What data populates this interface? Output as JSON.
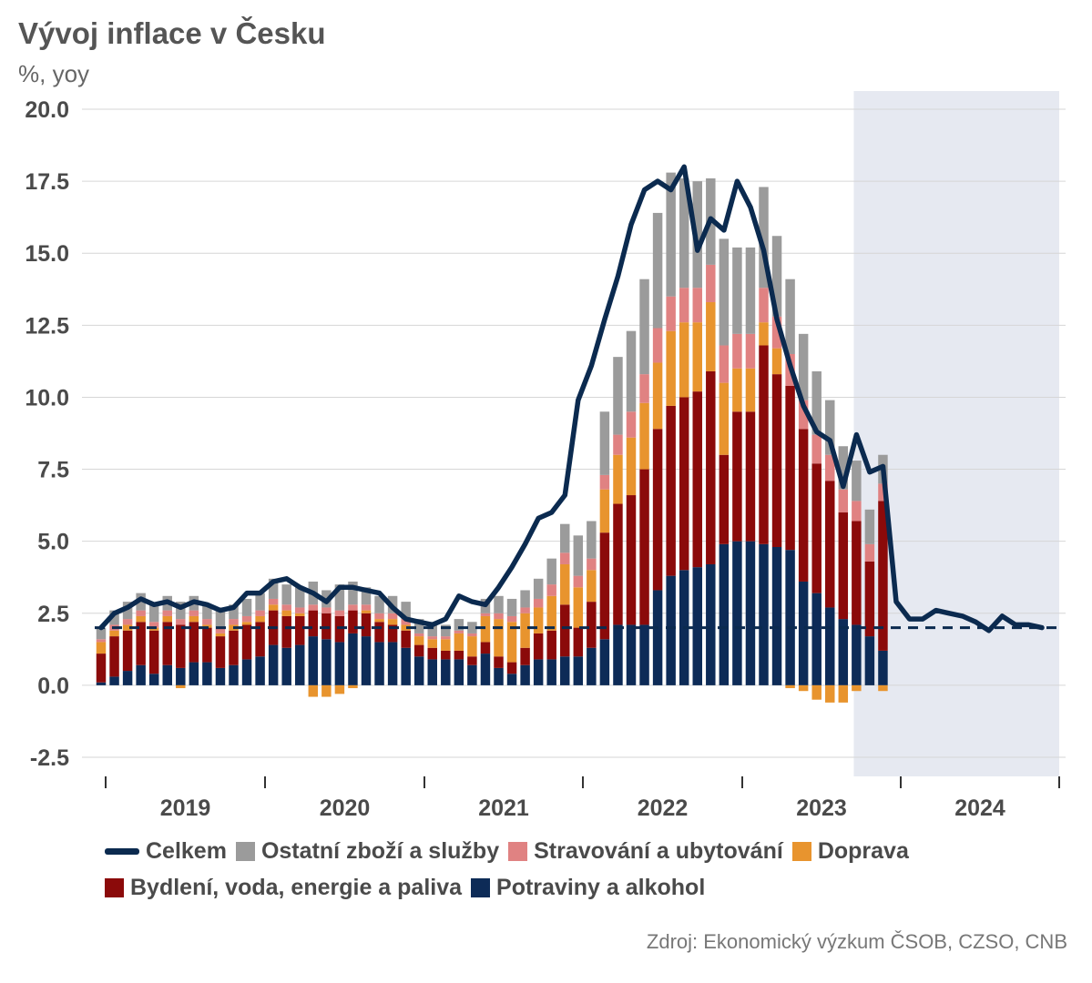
{
  "header": {
    "title": "Vývoj inflace v Česku",
    "subtitle": "%, yoy"
  },
  "source": "Zdroj: Ekonomický výzkum ČSOB, CZSO, CNB",
  "colors": {
    "total": "#0b2a4f",
    "other": "#9b9b9b",
    "restaurants": "#e08282",
    "transport": "#e8942e",
    "housing": "#8b0a0a",
    "food": "#0d2b57",
    "forecast_bg": "#e6e9f1",
    "target": "#0b2a4f"
  },
  "legend": [
    {
      "key": "total",
      "label": "Celkem",
      "shape": "line"
    },
    {
      "key": "other",
      "label": "Ostatní zboží a služby",
      "shape": "box"
    },
    {
      "key": "restaurants",
      "label": "Stravování a ubytování",
      "shape": "box"
    },
    {
      "key": "transport",
      "label": "Doprava",
      "shape": "box"
    },
    {
      "key": "housing",
      "label": "Bydlení, voda, energie a paliva",
      "shape": "box"
    },
    {
      "key": "food",
      "label": "Potraviny a alkohol",
      "shape": "box"
    }
  ],
  "chart_data": {
    "type": "bar",
    "stacked": true,
    "ylim": [
      -2.5,
      20.0
    ],
    "y_ticks": [
      "20.0",
      "17.5",
      "15.0",
      "12.5",
      "10.0",
      "7.5",
      "5.0",
      "2.5",
      "0.0",
      "-2.5"
    ],
    "y_tick_values": [
      20.0,
      17.5,
      15.0,
      12.5,
      10.0,
      7.5,
      5.0,
      2.5,
      0.0,
      -2.5
    ],
    "x_labels": [
      "2019",
      "2020",
      "2021",
      "2022",
      "2023",
      "2024"
    ],
    "x_start": "2019-01",
    "forecast_start": "2023-10",
    "target": 2.0,
    "grid": true,
    "legend_position": "bottom",
    "series": [
      {
        "key": "food",
        "name": "Potraviny a alkohol",
        "values": [
          0.1,
          0.3,
          0.5,
          0.7,
          0.4,
          0.7,
          0.6,
          0.8,
          0.8,
          0.6,
          0.7,
          0.9,
          1.0,
          1.4,
          1.3,
          1.4,
          1.7,
          1.6,
          1.5,
          1.8,
          1.7,
          1.5,
          1.5,
          1.3,
          1.0,
          0.9,
          0.9,
          0.9,
          0.7,
          1.1,
          0.6,
          0.4,
          0.7,
          0.9,
          0.9,
          1.0,
          1.0,
          1.3,
          1.6,
          2.1,
          2.1,
          2.1,
          3.3,
          3.8,
          4.0,
          4.1,
          4.2,
          4.9,
          5.0,
          5.0,
          4.9,
          4.8,
          4.7,
          3.6,
          3.2,
          2.7,
          2.3,
          2.1,
          1.7,
          1.2
        ]
      },
      {
        "key": "housing",
        "name": "Bydlení, voda, energie a paliva",
        "values": [
          1.0,
          1.4,
          1.4,
          1.5,
          1.5,
          1.5,
          1.5,
          1.4,
          1.2,
          1.1,
          1.2,
          1.2,
          1.2,
          1.2,
          1.1,
          1.0,
          0.9,
          0.9,
          0.9,
          0.8,
          0.8,
          0.7,
          0.6,
          0.6,
          0.4,
          0.4,
          0.3,
          0.3,
          0.3,
          0.4,
          0.4,
          0.4,
          0.6,
          0.9,
          1.0,
          1.8,
          1.0,
          1.6,
          3.7,
          4.2,
          4.5,
          5.4,
          5.6,
          5.9,
          6.0,
          6.1,
          6.7,
          3.1,
          4.5,
          4.5,
          6.9,
          6.0,
          5.7,
          5.3,
          4.5,
          4.4,
          3.7,
          3.6,
          2.6,
          5.2
        ]
      },
      {
        "key": "transport",
        "name": "Doprava",
        "values": [
          0.4,
          0.2,
          0.2,
          0.2,
          0.1,
          0.2,
          -0.1,
          0.2,
          0.1,
          0.1,
          0.2,
          0.1,
          0.2,
          0.2,
          0.2,
          0.1,
          -0.4,
          -0.4,
          -0.3,
          -0.1,
          0.1,
          0.1,
          0.2,
          0.2,
          0.3,
          0.3,
          0.4,
          0.6,
          0.7,
          0.9,
          1.3,
          1.4,
          1.2,
          0.9,
          1.2,
          1.4,
          1.4,
          1.1,
          1.5,
          1.7,
          2.0,
          2.3,
          2.3,
          2.6,
          2.6,
          2.4,
          2.4,
          2.5,
          1.5,
          1.5,
          0.8,
          0.9,
          -0.1,
          -0.2,
          -0.5,
          -0.6,
          -0.6,
          -0.2,
          0.0,
          -0.2
        ]
      },
      {
        "key": "restaurants",
        "name": "Stravování a ubytování",
        "values": [
          0.1,
          0.2,
          0.2,
          0.2,
          0.2,
          0.2,
          0.2,
          0.2,
          0.2,
          0.2,
          0.2,
          0.2,
          0.2,
          0.2,
          0.2,
          0.2,
          0.2,
          0.2,
          0.2,
          0.2,
          0.2,
          0.2,
          0.2,
          0.2,
          0.1,
          0.1,
          0.1,
          0.1,
          0.1,
          0.1,
          0.2,
          0.2,
          0.2,
          0.3,
          0.4,
          0.4,
          0.4,
          0.4,
          0.5,
          0.7,
          0.9,
          1.0,
          1.2,
          1.2,
          1.2,
          1.2,
          1.3,
          1.3,
          1.2,
          1.2,
          1.2,
          1.1,
          1.1,
          1.0,
          1.0,
          0.9,
          0.8,
          0.7,
          0.6,
          0.6
        ]
      },
      {
        "key": "other",
        "name": "Ostatní zboží a služby",
        "values": [
          0.4,
          0.5,
          0.6,
          0.6,
          0.6,
          0.5,
          0.6,
          0.5,
          0.5,
          0.7,
          0.5,
          0.6,
          0.6,
          0.7,
          0.7,
          0.7,
          0.8,
          0.6,
          0.9,
          0.8,
          0.6,
          0.6,
          0.6,
          0.6,
          0.5,
          0.5,
          0.4,
          0.4,
          0.4,
          0.5,
          0.6,
          0.6,
          0.6,
          0.7,
          0.9,
          1.0,
          1.4,
          1.3,
          2.2,
          2.7,
          2.8,
          3.3,
          4.0,
          4.3,
          3.8,
          3.7,
          3.0,
          3.7,
          3.0,
          3.0,
          3.5,
          2.8,
          2.6,
          2.3,
          2.2,
          1.9,
          1.5,
          1.4,
          1.2,
          1.0
        ]
      },
      {
        "key": "total",
        "name": "Celkem",
        "type": "line",
        "values": [
          2.0,
          2.5,
          2.7,
          3.0,
          2.8,
          2.9,
          2.7,
          2.9,
          2.8,
          2.6,
          2.7,
          3.2,
          3.2,
          3.6,
          3.7,
          3.4,
          3.2,
          2.9,
          3.4,
          3.4,
          3.3,
          3.2,
          2.7,
          2.3,
          2.2,
          2.1,
          2.3,
          3.1,
          2.9,
          2.8,
          3.4,
          4.1,
          4.9,
          5.8,
          6.0,
          6.6,
          9.9,
          11.1,
          12.7,
          14.2,
          16.0,
          17.2,
          17.5,
          17.2,
          18.0,
          15.1,
          16.2,
          15.8,
          17.5,
          16.6,
          15.1,
          12.7,
          11.1,
          9.7,
          8.8,
          8.5,
          6.9,
          8.7,
          7.4,
          7.6,
          2.9,
          2.3,
          2.3,
          2.6,
          2.5,
          2.4,
          2.2,
          1.9,
          2.4,
          2.1,
          2.1,
          2.0
        ]
      }
    ]
  }
}
